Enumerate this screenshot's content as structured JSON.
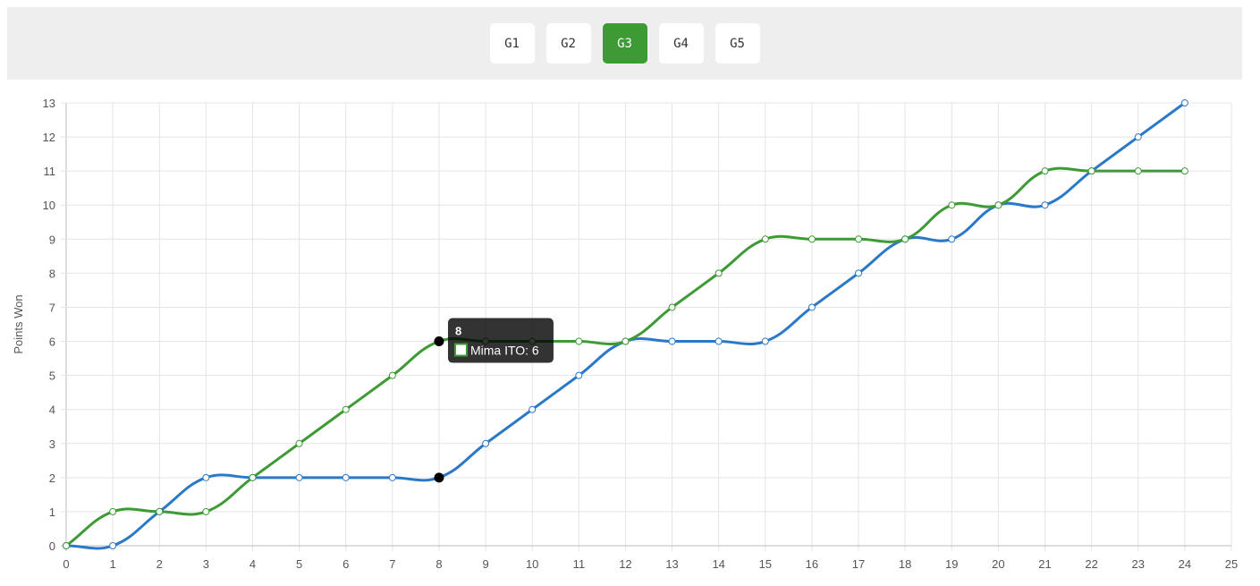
{
  "game_tabs": [
    {
      "label": "G1",
      "active": false
    },
    {
      "label": "G2",
      "active": false
    },
    {
      "label": "G3",
      "active": true
    },
    {
      "label": "G4",
      "active": false
    },
    {
      "label": "G5",
      "active": false
    }
  ],
  "chart_data": {
    "type": "line",
    "ylabel": "Points Won",
    "xlabel": "",
    "xlim": [
      0,
      25
    ],
    "ylim": [
      0,
      13
    ],
    "grid": true,
    "x": [
      0,
      1,
      2,
      3,
      4,
      5,
      6,
      7,
      8,
      9,
      10,
      11,
      12,
      13,
      14,
      15,
      16,
      17,
      18,
      19,
      20,
      21,
      22,
      23,
      24
    ],
    "series": [
      {
        "name": "Mima ITO",
        "color": "#3d9a35",
        "values": [
          0,
          1,
          1,
          1,
          2,
          3,
          4,
          5,
          6,
          6,
          6,
          6,
          6,
          7,
          8,
          9,
          9,
          9,
          9,
          10,
          10,
          11,
          11,
          11,
          11
        ]
      },
      {
        "color": "#2a78c8",
        "values": [
          0,
          0,
          1,
          2,
          2,
          2,
          2,
          2,
          2,
          3,
          4,
          5,
          6,
          6,
          6,
          6,
          7,
          8,
          9,
          9,
          10,
          10,
          11,
          12,
          13
        ]
      }
    ],
    "tooltip": {
      "title": "8",
      "label": "Mima ITO: 6",
      "x": 8
    }
  }
}
